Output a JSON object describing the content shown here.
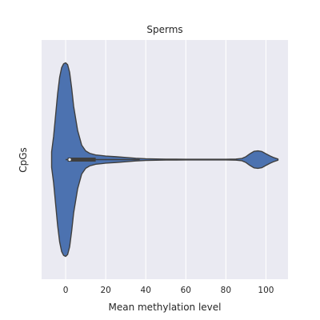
{
  "chart_data": {
    "type": "violin",
    "title": "Sperms",
    "xlabel": "Mean methylation level",
    "ylabel": "CpGs",
    "xlim": [
      -12,
      111
    ],
    "xticks": [
      0,
      20,
      40,
      60,
      80,
      100
    ],
    "grid": true,
    "orientation": "horizontal",
    "series": [
      {
        "color": "#4c72b0",
        "density_x": [
          -7,
          -6,
          -5,
          -4,
          -3,
          -2,
          -1,
          0,
          1,
          2,
          3,
          4,
          6,
          8,
          10,
          12,
          15,
          20,
          25,
          30,
          35,
          40,
          45,
          50,
          55,
          60,
          65,
          70,
          75,
          80,
          85,
          88,
          90,
          92,
          94,
          96,
          98,
          100,
          102,
          104,
          106
        ],
        "density_w": [
          0.08,
          0.24,
          0.46,
          0.68,
          0.85,
          0.95,
          0.99,
          1.0,
          0.98,
          0.9,
          0.74,
          0.55,
          0.3,
          0.15,
          0.09,
          0.065,
          0.048,
          0.037,
          0.03,
          0.022,
          0.014,
          0.009,
          0.007,
          0.005,
          0.005,
          0.004,
          0.004,
          0.004,
          0.004,
          0.004,
          0.006,
          0.012,
          0.03,
          0.06,
          0.085,
          0.09,
          0.083,
          0.06,
          0.038,
          0.02,
          0.006
        ],
        "quartiles": [
          1,
          15
        ],
        "median": 2,
        "whiskers": [
          0,
          37
        ]
      }
    ]
  }
}
